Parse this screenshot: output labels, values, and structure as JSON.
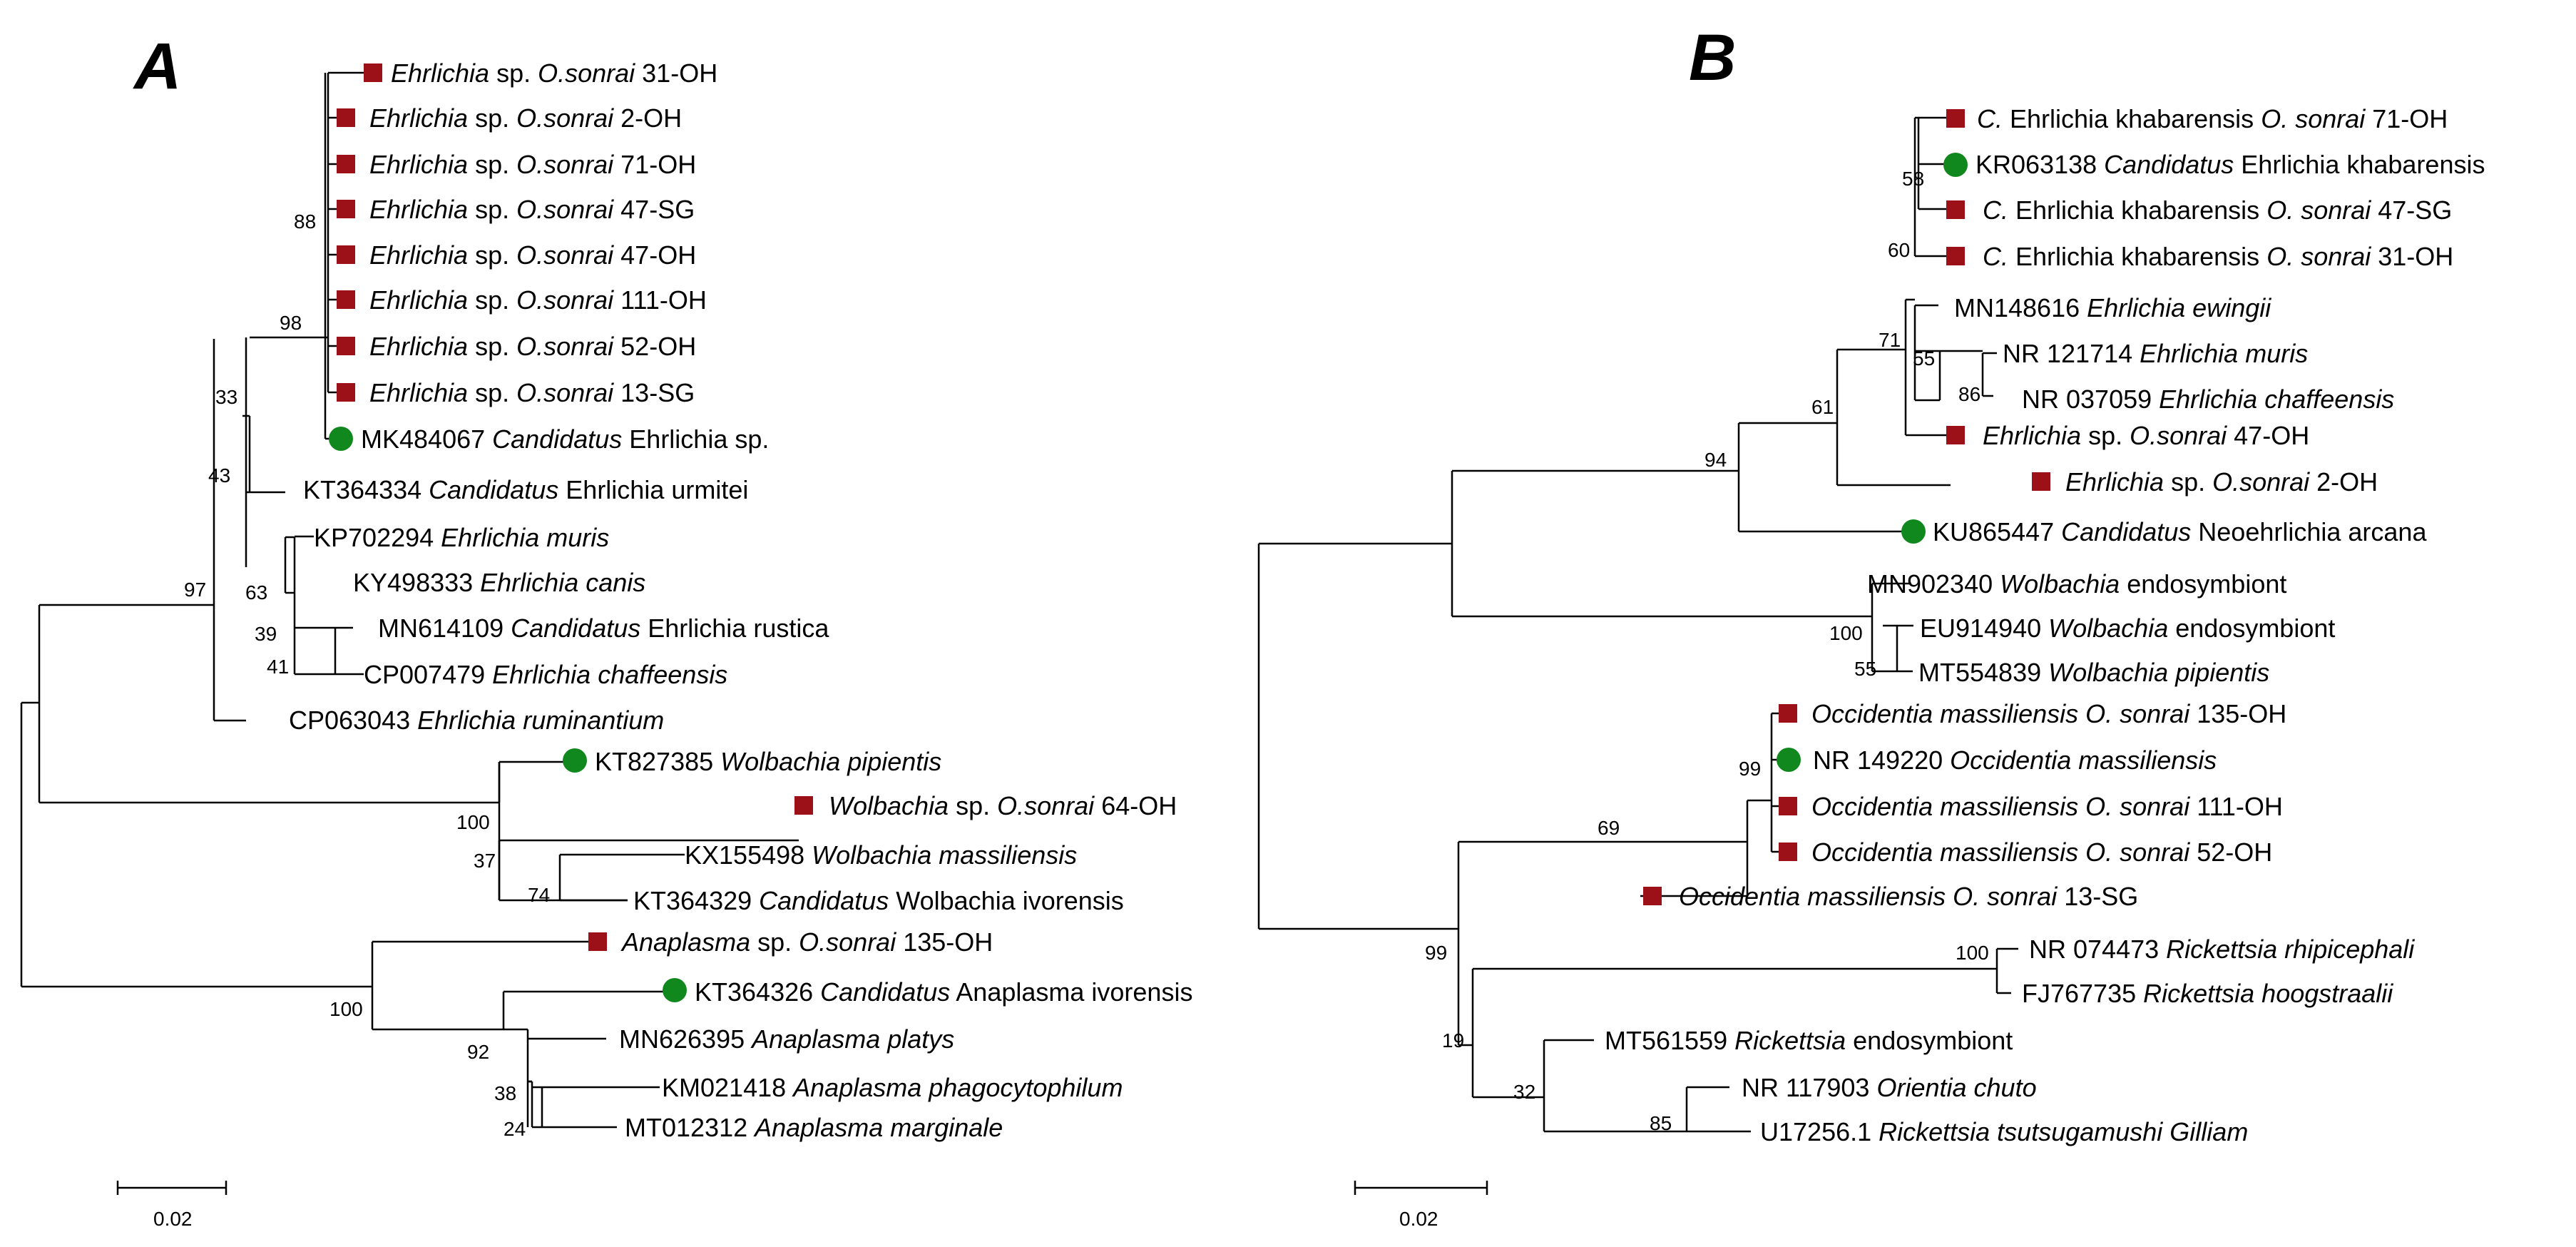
{
  "colors": {
    "study_marker": "#9b1117",
    "reference_marker": "#11881e",
    "branch": "#000000"
  },
  "panels": [
    {
      "id": "A",
      "label": "A",
      "scale_label": "0.02",
      "taxa": [
        {
          "id": "t1",
          "marker": "square",
          "parts": [
            {
              "t": "Ehrlichia",
              "i": true
            },
            {
              "t": " sp. ",
              "i": false
            },
            {
              "t": "O.sonrai",
              "i": true
            },
            {
              "t": " 31-OH",
              "i": false
            }
          ]
        },
        {
          "id": "t2",
          "marker": "square",
          "parts": [
            {
              "t": "Ehrlichia",
              "i": true
            },
            {
              "t": " sp. ",
              "i": false
            },
            {
              "t": "O.sonrai",
              "i": true
            },
            {
              "t": " 2-OH",
              "i": false
            }
          ]
        },
        {
          "id": "t3",
          "marker": "square",
          "parts": [
            {
              "t": "Ehrlichia",
              "i": true
            },
            {
              "t": " sp. ",
              "i": false
            },
            {
              "t": "O.sonrai",
              "i": true
            },
            {
              "t": " 71-OH",
              "i": false
            }
          ]
        },
        {
          "id": "t4",
          "marker": "square",
          "parts": [
            {
              "t": "Ehrlichia",
              "i": true
            },
            {
              "t": " sp. ",
              "i": false
            },
            {
              "t": "O.sonrai",
              "i": true
            },
            {
              "t": " 47-SG",
              "i": false
            }
          ]
        },
        {
          "id": "t5",
          "marker": "square",
          "parts": [
            {
              "t": "Ehrlichia",
              "i": true
            },
            {
              "t": " sp. ",
              "i": false
            },
            {
              "t": "O.sonrai",
              "i": true
            },
            {
              "t": " 47-OH",
              "i": false
            }
          ]
        },
        {
          "id": "t6",
          "marker": "square",
          "parts": [
            {
              "t": "Ehrlichia",
              "i": true
            },
            {
              "t": " sp. ",
              "i": false
            },
            {
              "t": "O.sonrai",
              "i": true
            },
            {
              "t": " 111-OH",
              "i": false
            }
          ]
        },
        {
          "id": "t7",
          "marker": "square",
          "parts": [
            {
              "t": "Ehrlichia",
              "i": true
            },
            {
              "t": " sp. ",
              "i": false
            },
            {
              "t": "O.sonrai",
              "i": true
            },
            {
              "t": " 52-OH",
              "i": false
            }
          ]
        },
        {
          "id": "t8",
          "marker": "square",
          "parts": [
            {
              "t": "Ehrlichia",
              "i": true
            },
            {
              "t": " sp. ",
              "i": false
            },
            {
              "t": "O.sonrai",
              "i": true
            },
            {
              "t": " 13-SG",
              "i": false
            }
          ]
        },
        {
          "id": "t9",
          "marker": "circle",
          "parts": [
            {
              "t": "MK484067 ",
              "i": false
            },
            {
              "t": "Candidatus",
              "i": true
            },
            {
              "t": " Ehrlichia sp.",
              "i": false
            }
          ]
        },
        {
          "id": "t10",
          "marker": "none",
          "parts": [
            {
              "t": "KT364334 ",
              "i": false
            },
            {
              "t": "Candidatus",
              "i": true
            },
            {
              "t": " Ehrlichia urmitei",
              "i": false
            }
          ]
        },
        {
          "id": "t11",
          "marker": "none",
          "parts": [
            {
              "t": "KP702294 ",
              "i": false
            },
            {
              "t": "Ehrlichia muris",
              "i": true
            }
          ]
        },
        {
          "id": "t12",
          "marker": "none",
          "parts": [
            {
              "t": "KY498333 ",
              "i": false
            },
            {
              "t": "Ehrlichia canis",
              "i": true
            }
          ]
        },
        {
          "id": "t13",
          "marker": "none",
          "parts": [
            {
              "t": "MN614109 ",
              "i": false
            },
            {
              "t": "Candidatus",
              "i": true
            },
            {
              "t": " Ehrlichia rustica",
              "i": false
            }
          ]
        },
        {
          "id": "t14",
          "marker": "none",
          "parts": [
            {
              "t": "CP007479 ",
              "i": false
            },
            {
              "t": "Ehrlichia chaffeensis",
              "i": true
            }
          ]
        },
        {
          "id": "t15",
          "marker": "none",
          "parts": [
            {
              "t": "CP063043 ",
              "i": false
            },
            {
              "t": "Ehrlichia ruminantium",
              "i": true
            }
          ]
        },
        {
          "id": "t16",
          "marker": "circle",
          "parts": [
            {
              "t": "KT827385 ",
              "i": false
            },
            {
              "t": "Wolbachia pipientis",
              "i": true
            }
          ]
        },
        {
          "id": "t17",
          "marker": "square",
          "parts": [
            {
              "t": "Wolbachia",
              "i": true
            },
            {
              "t": " sp. ",
              "i": false
            },
            {
              "t": "O.sonrai",
              "i": true
            },
            {
              "t": " 64-OH",
              "i": false
            }
          ]
        },
        {
          "id": "t18",
          "marker": "none",
          "parts": [
            {
              "t": "KX155498 ",
              "i": false
            },
            {
              "t": "Wolbachia massiliensis",
              "i": true
            }
          ]
        },
        {
          "id": "t19",
          "marker": "none",
          "parts": [
            {
              "t": "KT364329 ",
              "i": false
            },
            {
              "t": "Candidatus",
              "i": true
            },
            {
              "t": " Wolbachia ivorensis",
              "i": false
            }
          ]
        },
        {
          "id": "t20",
          "marker": "square",
          "parts": [
            {
              "t": "Anaplasma",
              "i": true
            },
            {
              "t": " sp. ",
              "i": false
            },
            {
              "t": "O.sonrai",
              "i": true
            },
            {
              "t": " 135-OH",
              "i": false
            }
          ]
        },
        {
          "id": "t21",
          "marker": "circle",
          "parts": [
            {
              "t": "KT364326 ",
              "i": false
            },
            {
              "t": "Candidatus",
              "i": true
            },
            {
              "t": " Anaplasma ivorensis",
              "i": false
            }
          ]
        },
        {
          "id": "t22",
          "marker": "none",
          "parts": [
            {
              "t": "MN626395 ",
              "i": false
            },
            {
              "t": "Anaplasma platys",
              "i": true
            }
          ]
        },
        {
          "id": "t23",
          "marker": "none",
          "parts": [
            {
              "t": "KM021418 ",
              "i": false
            },
            {
              "t": "Anaplasma phagocytophilum",
              "i": true
            }
          ]
        },
        {
          "id": "t24",
          "marker": "none",
          "parts": [
            {
              "t": "MT012312 ",
              "i": false
            },
            {
              "t": "Anaplasma marginale",
              "i": true
            }
          ]
        }
      ],
      "bootstrap": [
        {
          "id": "b88",
          "value": "88"
        },
        {
          "id": "b98",
          "value": "98"
        },
        {
          "id": "b33",
          "value": "33"
        },
        {
          "id": "b43",
          "value": "43"
        },
        {
          "id": "b97",
          "value": "97"
        },
        {
          "id": "b63",
          "value": "63"
        },
        {
          "id": "b39",
          "value": "39"
        },
        {
          "id": "b41",
          "value": "41"
        },
        {
          "id": "b100a",
          "value": "100"
        },
        {
          "id": "b37",
          "value": "37"
        },
        {
          "id": "b74",
          "value": "74"
        },
        {
          "id": "b100b",
          "value": "100"
        },
        {
          "id": "b92",
          "value": "92"
        },
        {
          "id": "b38",
          "value": "38"
        },
        {
          "id": "b24",
          "value": "24"
        }
      ]
    },
    {
      "id": "B",
      "label": "B",
      "scale_label": "0.02",
      "taxa": [
        {
          "id": "u1",
          "marker": "square",
          "parts": [
            {
              "t": "C.",
              "i": true
            },
            {
              "t": " Ehrlichia khabarensis ",
              "i": false
            },
            {
              "t": "O. sonrai",
              "i": true
            },
            {
              "t": " 71-OH",
              "i": false
            }
          ]
        },
        {
          "id": "u2",
          "marker": "circle",
          "parts": [
            {
              "t": "KR063138 ",
              "i": false
            },
            {
              "t": "Candidatus",
              "i": true
            },
            {
              "t": " Ehrlichia khabarensis",
              "i": false
            }
          ]
        },
        {
          "id": "u3",
          "marker": "square",
          "parts": [
            {
              "t": "C.",
              "i": true
            },
            {
              "t": " Ehrlichia khabarensis ",
              "i": false
            },
            {
              "t": "O. sonrai",
              "i": true
            },
            {
              "t": " 47-SG",
              "i": false
            }
          ]
        },
        {
          "id": "u4",
          "marker": "square",
          "parts": [
            {
              "t": "C.",
              "i": true
            },
            {
              "t": " Ehrlichia khabarensis ",
              "i": false
            },
            {
              "t": "O. sonrai",
              "i": true
            },
            {
              "t": " 31-OH",
              "i": false
            }
          ]
        },
        {
          "id": "u5",
          "marker": "none",
          "parts": [
            {
              "t": "MN148616 ",
              "i": false
            },
            {
              "t": "Ehrlichia ewingii",
              "i": true
            }
          ]
        },
        {
          "id": "u6",
          "marker": "none",
          "parts": [
            {
              "t": "NR 121714 ",
              "i": false
            },
            {
              "t": "Ehrlichia muris",
              "i": true
            }
          ]
        },
        {
          "id": "u7",
          "marker": "none",
          "parts": [
            {
              "t": "NR 037059 ",
              "i": false
            },
            {
              "t": "Ehrlichia chaffeensis",
              "i": true
            }
          ]
        },
        {
          "id": "u8",
          "marker": "square",
          "parts": [
            {
              "t": "Ehrlichia",
              "i": true
            },
            {
              "t": " sp. ",
              "i": false
            },
            {
              "t": "O.sonrai",
              "i": true
            },
            {
              "t": " 47-OH",
              "i": false
            }
          ]
        },
        {
          "id": "u9",
          "marker": "square",
          "parts": [
            {
              "t": "Ehrlichia",
              "i": true
            },
            {
              "t": " sp. ",
              "i": false
            },
            {
              "t": "O.sonrai",
              "i": true
            },
            {
              "t": " 2-OH",
              "i": false
            }
          ]
        },
        {
          "id": "u10",
          "marker": "circle",
          "parts": [
            {
              "t": "KU865447 ",
              "i": false
            },
            {
              "t": "Candidatus",
              "i": true
            },
            {
              "t": " Neoehrlichia arcana",
              "i": false
            }
          ]
        },
        {
          "id": "u11",
          "marker": "none",
          "parts": [
            {
              "t": "MN902340 ",
              "i": false
            },
            {
              "t": "Wolbachia",
              "i": true
            },
            {
              "t": " endosymbiont",
              "i": false
            }
          ]
        },
        {
          "id": "u12",
          "marker": "none",
          "parts": [
            {
              "t": "EU914940 ",
              "i": false
            },
            {
              "t": "Wolbachia",
              "i": true
            },
            {
              "t": " endosymbiont",
              "i": false
            }
          ]
        },
        {
          "id": "u13",
          "marker": "none",
          "parts": [
            {
              "t": "MT554839 ",
              "i": false
            },
            {
              "t": "Wolbachia pipientis",
              "i": true
            }
          ]
        },
        {
          "id": "u14",
          "marker": "square",
          "parts": [
            {
              "t": "Occidentia massiliensis O. sonrai",
              "i": true
            },
            {
              "t": " 135-OH",
              "i": false
            }
          ]
        },
        {
          "id": "u15",
          "marker": "circle",
          "parts": [
            {
              "t": "NR 149220 ",
              "i": false
            },
            {
              "t": "Occidentia massiliensis",
              "i": true
            }
          ]
        },
        {
          "id": "u16",
          "marker": "square",
          "parts": [
            {
              "t": "Occidentia massiliensis O. sonrai",
              "i": true
            },
            {
              "t": " 111-OH",
              "i": false
            }
          ]
        },
        {
          "id": "u17",
          "marker": "square",
          "parts": [
            {
              "t": "Occidentia massiliensis O. sonrai",
              "i": true
            },
            {
              "t": " 52-OH",
              "i": false
            }
          ]
        },
        {
          "id": "u18",
          "marker": "square",
          "parts": [
            {
              "t": "Occidentia massiliensis O. sonrai",
              "i": true
            },
            {
              "t": " 13-SG",
              "i": false
            }
          ]
        },
        {
          "id": "u19",
          "marker": "none",
          "parts": [
            {
              "t": "NR 074473 ",
              "i": false
            },
            {
              "t": "Rickettsia rhipicephali",
              "i": true
            }
          ]
        },
        {
          "id": "u20",
          "marker": "none",
          "parts": [
            {
              "t": "FJ767735 ",
              "i": false
            },
            {
              "t": "Rickettsia hoogstraalii",
              "i": true
            }
          ]
        },
        {
          "id": "u21",
          "marker": "none",
          "parts": [
            {
              "t": "MT561559 ",
              "i": false
            },
            {
              "t": "Rickettsia",
              "i": true
            },
            {
              "t": " endosymbiont",
              "i": false
            }
          ]
        },
        {
          "id": "u22",
          "marker": "none",
          "parts": [
            {
              "t": "NR 117903 ",
              "i": false
            },
            {
              "t": "Orientia chuto",
              "i": true
            }
          ]
        },
        {
          "id": "u23",
          "marker": "none",
          "parts": [
            {
              "t": "U17256.1 ",
              "i": false
            },
            {
              "t": "Rickettsia tsutsugamushi Gilliam",
              "i": true
            }
          ]
        }
      ],
      "bootstrap": [
        {
          "id": "c58",
          "value": "58"
        },
        {
          "id": "c60",
          "value": "60"
        },
        {
          "id": "c71",
          "value": "71"
        },
        {
          "id": "c55a",
          "value": "55"
        },
        {
          "id": "c86",
          "value": "86"
        },
        {
          "id": "c61",
          "value": "61"
        },
        {
          "id": "c94",
          "value": "94"
        },
        {
          "id": "c100a",
          "value": "100"
        },
        {
          "id": "c55b",
          "value": "55"
        },
        {
          "id": "c99a",
          "value": "99"
        },
        {
          "id": "c69",
          "value": "69"
        },
        {
          "id": "c99b",
          "value": "99"
        },
        {
          "id": "c100b",
          "value": "100"
        },
        {
          "id": "c19",
          "value": "19"
        },
        {
          "id": "c32",
          "value": "32"
        },
        {
          "id": "c85",
          "value": "85"
        }
      ]
    }
  ]
}
